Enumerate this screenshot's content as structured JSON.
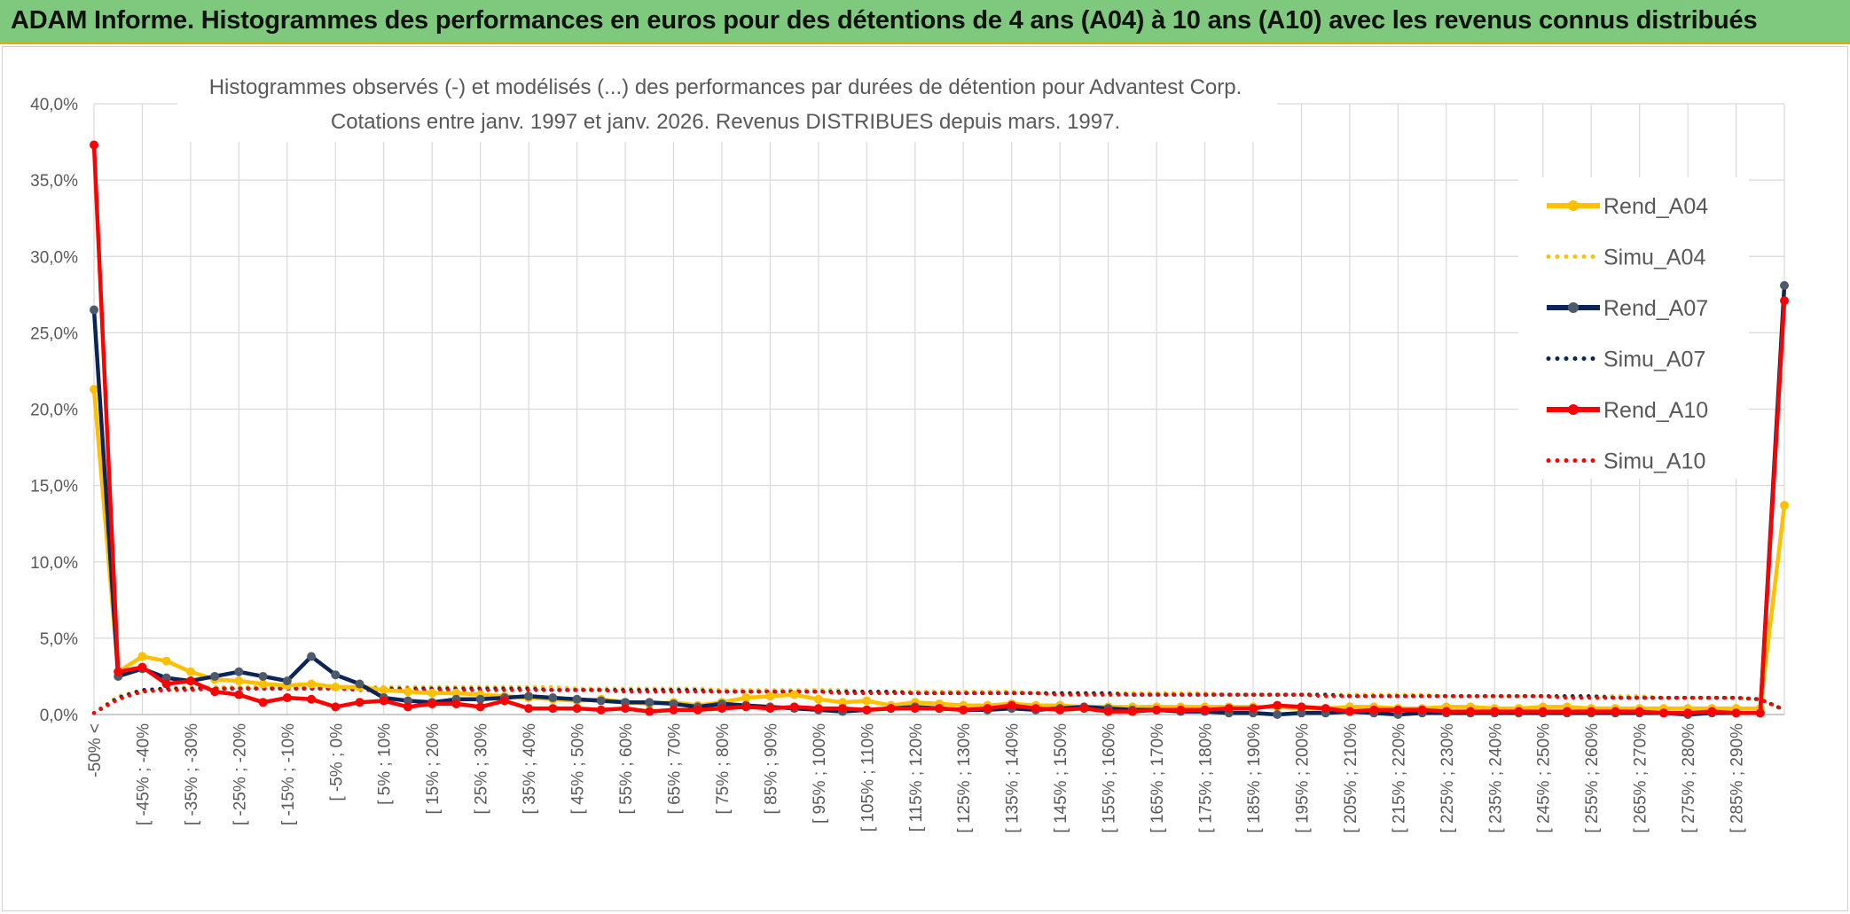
{
  "banner": {
    "title": "ADAM Informe. Histogrammes des performances en euros pour des détentions de 4 ans (A04) à 10 ans (A10) avec les revenus connus distribués"
  },
  "colors": {
    "banner_bg": "#7fc97f",
    "A04": "#ffc000",
    "A07": "#0b2559",
    "A07_marker": "#4d5a6b",
    "A10": "#ff0000"
  },
  "chart_data": {
    "type": "line",
    "title": "Histogrammes observés (-) et modélisés (...) des performances par durées de détention pour Advantest Corp.",
    "subtitle": "Cotations entre janv. 1997 et janv. 2026. Revenus DISTRIBUES depuis mars. 1997.",
    "ylim": [
      0,
      40
    ],
    "ytick_labels": [
      "0,0%",
      "5,0%",
      "10,0%",
      "15,0%",
      "20,0%",
      "25,0%",
      "30,0%",
      "35,0%",
      "40,0%"
    ],
    "grid": true,
    "legend_position": "right",
    "x_labels_shown": [
      "-50% <",
      "[ -45% ; -40%",
      "[ -35% ; -30%",
      "[ -25% ; -20%",
      "[ -15% ; -10%",
      "[ -5% ; 0%",
      "[ 5% ; 10%",
      "[ 15% ; 20%",
      "[ 25% ; 30%",
      "[ 35% ; 40%",
      "[ 45% ; 50%",
      "[ 55% ; 60%",
      "[ 65% ; 70%",
      "[ 75% ; 80%",
      "[ 85% ; 90%",
      "[ 95% ; 100%",
      "[ 105% ; 110%",
      "[ 115% ; 120%",
      "[ 125% ; 130%",
      "[ 135% ; 140%",
      "[ 145% ; 150%",
      "[ 155% ; 160%",
      "[ 165% ; 170%",
      "[ 175% ; 180%",
      "[ 185% ; 190%",
      "[ 195% ; 200%",
      "[ 205% ; 210%",
      "[ 215% ; 220%",
      "[ 225% ; 230%",
      "[ 235% ; 240%",
      "[ 245% ; 250%",
      "[ 255% ; 260%",
      "[ 265% ; 270%",
      "[ 275% ; 280%",
      "[ 285% ; 290%"
    ],
    "series": [
      {
        "name": "Rend_A04",
        "style": "solid",
        "color": "#ffc000",
        "values": [
          21.3,
          2.8,
          3.8,
          3.5,
          2.8,
          2.3,
          2.2,
          2.0,
          1.9,
          2.0,
          1.8,
          1.8,
          1.6,
          1.5,
          1.4,
          1.4,
          1.3,
          1.2,
          1.1,
          1.0,
          0.9,
          1.0,
          0.8,
          0.7,
          0.8,
          0.6,
          0.8,
          1.1,
          1.2,
          1.3,
          1.0,
          0.8,
          0.9,
          0.6,
          0.8,
          0.7,
          0.6,
          0.6,
          0.7,
          0.6,
          0.6,
          0.5,
          0.5,
          0.5,
          0.5,
          0.5,
          0.5,
          0.5,
          0.5,
          0.5,
          0.4,
          0.4,
          0.5,
          0.5,
          0.4,
          0.4,
          0.5,
          0.5,
          0.4,
          0.4,
          0.5,
          0.5,
          0.4,
          0.4,
          0.4,
          0.4,
          0.4,
          0.4,
          0.4,
          0.4,
          13.7
        ]
      },
      {
        "name": "Simu_A04",
        "style": "dotted",
        "color": "#ffc000",
        "values": [
          0.1,
          1.2,
          1.6,
          1.7,
          1.8,
          1.8,
          1.8,
          1.8,
          1.8,
          1.8,
          1.8,
          1.8,
          1.8,
          1.8,
          1.8,
          1.8,
          1.8,
          1.8,
          1.8,
          1.8,
          1.7,
          1.7,
          1.7,
          1.7,
          1.7,
          1.7,
          1.6,
          1.6,
          1.6,
          1.6,
          1.6,
          1.6,
          1.5,
          1.5,
          1.5,
          1.5,
          1.5,
          1.5,
          1.5,
          1.4,
          1.4,
          1.4,
          1.4,
          1.4,
          1.4,
          1.4,
          1.4,
          1.3,
          1.3,
          1.3,
          1.3,
          1.3,
          1.3,
          1.3,
          1.3,
          1.3,
          1.2,
          1.2,
          1.2,
          1.2,
          1.2,
          1.2,
          1.2,
          1.2,
          1.2,
          1.1,
          1.1,
          1.1,
          1.1,
          1.0,
          0.3
        ]
      },
      {
        "name": "Rend_A07",
        "style": "solid",
        "color": "#0b2559",
        "values": [
          26.5,
          2.5,
          3.0,
          2.4,
          2.2,
          2.5,
          2.8,
          2.5,
          2.2,
          3.8,
          2.6,
          2.0,
          1.1,
          0.9,
          0.8,
          1.0,
          1.0,
          1.1,
          1.2,
          1.1,
          1.0,
          0.9,
          0.8,
          0.8,
          0.7,
          0.5,
          0.7,
          0.6,
          0.5,
          0.4,
          0.3,
          0.2,
          0.3,
          0.4,
          0.5,
          0.4,
          0.3,
          0.3,
          0.4,
          0.3,
          0.4,
          0.5,
          0.4,
          0.3,
          0.3,
          0.2,
          0.2,
          0.1,
          0.1,
          0.0,
          0.1,
          0.1,
          0.2,
          0.1,
          0.0,
          0.1,
          0.1,
          0.1,
          0.1,
          0.1,
          0.1,
          0.1,
          0.1,
          0.1,
          0.1,
          0.1,
          0.0,
          0.1,
          0.1,
          0.1,
          28.1
        ]
      },
      {
        "name": "Simu_A07",
        "style": "dotted",
        "color": "#0b2559",
        "values": [
          0.1,
          1.1,
          1.6,
          1.7,
          1.7,
          1.7,
          1.7,
          1.7,
          1.7,
          1.7,
          1.7,
          1.7,
          1.7,
          1.7,
          1.7,
          1.7,
          1.7,
          1.7,
          1.7,
          1.6,
          1.6,
          1.6,
          1.6,
          1.6,
          1.6,
          1.6,
          1.5,
          1.5,
          1.5,
          1.5,
          1.5,
          1.5,
          1.5,
          1.5,
          1.4,
          1.4,
          1.4,
          1.4,
          1.4,
          1.4,
          1.4,
          1.4,
          1.4,
          1.3,
          1.3,
          1.3,
          1.3,
          1.3,
          1.3,
          1.3,
          1.3,
          1.3,
          1.2,
          1.2,
          1.2,
          1.2,
          1.2,
          1.2,
          1.2,
          1.2,
          1.2,
          1.2,
          1.2,
          1.1,
          1.1,
          1.1,
          1.1,
          1.1,
          1.1,
          1.0,
          0.3
        ]
      },
      {
        "name": "Rend_A10",
        "style": "solid",
        "color": "#ff0000",
        "values": [
          37.3,
          2.8,
          3.1,
          2.0,
          2.2,
          1.5,
          1.3,
          0.8,
          1.1,
          1.0,
          0.5,
          0.8,
          0.9,
          0.5,
          0.7,
          0.7,
          0.5,
          0.9,
          0.4,
          0.4,
          0.4,
          0.3,
          0.4,
          0.2,
          0.3,
          0.3,
          0.4,
          0.5,
          0.4,
          0.5,
          0.4,
          0.4,
          0.3,
          0.4,
          0.4,
          0.4,
          0.3,
          0.4,
          0.6,
          0.4,
          0.3,
          0.4,
          0.2,
          0.2,
          0.3,
          0.3,
          0.3,
          0.4,
          0.4,
          0.6,
          0.5,
          0.4,
          0.2,
          0.3,
          0.3,
          0.3,
          0.2,
          0.2,
          0.2,
          0.2,
          0.2,
          0.2,
          0.2,
          0.2,
          0.2,
          0.1,
          0.1,
          0.2,
          0.1,
          0.1,
          27.1
        ]
      },
      {
        "name": "Simu_A10",
        "style": "dotted",
        "color": "#ff0000",
        "values": [
          0.1,
          1.0,
          1.5,
          1.6,
          1.6,
          1.7,
          1.7,
          1.7,
          1.7,
          1.7,
          1.7,
          1.6,
          1.6,
          1.6,
          1.6,
          1.6,
          1.6,
          1.6,
          1.6,
          1.6,
          1.6,
          1.6,
          1.5,
          1.5,
          1.5,
          1.5,
          1.5,
          1.5,
          1.5,
          1.5,
          1.5,
          1.4,
          1.4,
          1.4,
          1.4,
          1.4,
          1.4,
          1.4,
          1.4,
          1.4,
          1.3,
          1.3,
          1.3,
          1.3,
          1.3,
          1.3,
          1.3,
          1.3,
          1.3,
          1.3,
          1.3,
          1.2,
          1.2,
          1.2,
          1.2,
          1.2,
          1.2,
          1.2,
          1.2,
          1.2,
          1.2,
          1.1,
          1.1,
          1.1,
          1.1,
          1.1,
          1.1,
          1.1,
          1.1,
          1.0,
          0.3
        ]
      }
    ]
  }
}
